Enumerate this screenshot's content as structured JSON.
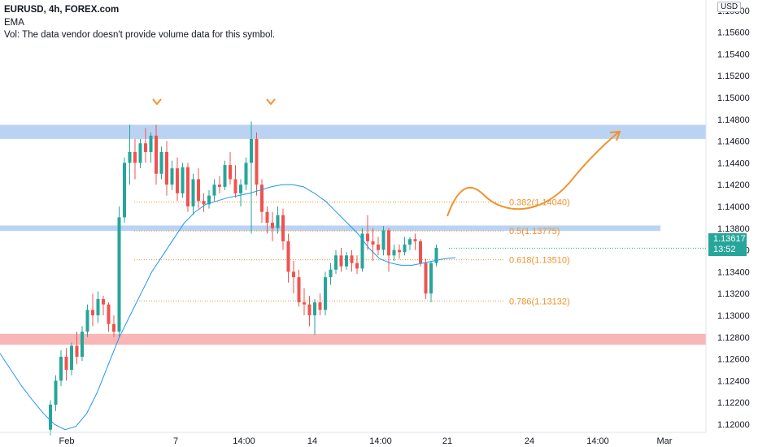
{
  "header": {
    "title": "EURUSD, 4h, FOREX.com",
    "indicator": "EMA",
    "volume_note": "Vol: The data vendor doesn't provide volume data for this symbol."
  },
  "price_scale": {
    "currency": "USD",
    "current_price": "1.13617",
    "countdown": "13:52",
    "current_price_color": "#26a69a"
  },
  "colors": {
    "up": "#26a69a",
    "down": "#ef5350",
    "ema": "#2196f3",
    "fib": "#f0932b",
    "resistance_zone": "#bbd3f3",
    "support_zone": "#f9b6b6",
    "arrow": "#f0932b"
  },
  "chart_data": {
    "type": "candlestick",
    "title": "EURUSD, 4h, FOREX.com",
    "ylim": [
      1.1185,
      1.1585
    ],
    "y_ticks": [
      "1.15800",
      "1.15600",
      "1.15400",
      "1.15200",
      "1.15000",
      "1.14800",
      "1.14600",
      "1.14400",
      "1.14200",
      "1.14000",
      "1.13800",
      "1.13600",
      "1.13400",
      "1.13200",
      "1.13000",
      "1.12800",
      "1.12600",
      "1.12400",
      "1.12200",
      "1.12000"
    ],
    "x_ticks": [
      "Feb",
      "7",
      "14:00",
      "14",
      "14:00",
      "21",
      "24",
      "14:00",
      "Mar"
    ],
    "series": [
      {
        "name": "EURUSD",
        "ohlc": [
          [
            1.1195,
            1.1222,
            1.119,
            1.1218
          ],
          [
            1.1218,
            1.1245,
            1.1212,
            1.124
          ],
          [
            1.124,
            1.1268,
            1.1235,
            1.1262
          ],
          [
            1.1262,
            1.127,
            1.124,
            1.125
          ],
          [
            1.125,
            1.1275,
            1.1245,
            1.1272
          ],
          [
            1.1272,
            1.1285,
            1.1255,
            1.1262
          ],
          [
            1.1262,
            1.129,
            1.1258,
            1.1285
          ],
          [
            1.1285,
            1.131,
            1.128,
            1.1305
          ],
          [
            1.1305,
            1.132,
            1.129,
            1.13
          ],
          [
            1.13,
            1.1322,
            1.1293,
            1.1315
          ],
          [
            1.1315,
            1.1318,
            1.13,
            1.131
          ],
          [
            1.131,
            1.1312,
            1.1285,
            1.1292
          ],
          [
            1.1292,
            1.13,
            1.128,
            1.1285
          ],
          [
            1.1285,
            1.14,
            1.128,
            1.139
          ],
          [
            1.139,
            1.1445,
            1.1385,
            1.144
          ],
          [
            1.144,
            1.1475,
            1.142,
            1.145
          ],
          [
            1.145,
            1.1462,
            1.1425,
            1.144
          ],
          [
            1.144,
            1.1462,
            1.1435,
            1.1458
          ],
          [
            1.1458,
            1.1472,
            1.144,
            1.145
          ],
          [
            1.145,
            1.1468,
            1.144,
            1.1465
          ],
          [
            1.1465,
            1.1475,
            1.142,
            1.143
          ],
          [
            1.143,
            1.1455,
            1.1425,
            1.145
          ],
          [
            1.145,
            1.146,
            1.141,
            1.142
          ],
          [
            1.142,
            1.1442,
            1.1415,
            1.1435
          ],
          [
            1.1435,
            1.1445,
            1.1405,
            1.1412
          ],
          [
            1.1412,
            1.144,
            1.1408,
            1.1436
          ],
          [
            1.1436,
            1.144,
            1.1395,
            1.14
          ],
          [
            1.14,
            1.143,
            1.1392,
            1.1425
          ],
          [
            1.1425,
            1.1435,
            1.1398,
            1.1405
          ],
          [
            1.1405,
            1.1412,
            1.1395,
            1.1402
          ],
          [
            1.1402,
            1.1415,
            1.1398,
            1.141
          ],
          [
            1.141,
            1.1425,
            1.1405,
            1.142
          ],
          [
            1.142,
            1.1428,
            1.1412,
            1.1418
          ],
          [
            1.1418,
            1.1442,
            1.1415,
            1.1438
          ],
          [
            1.1438,
            1.145,
            1.142,
            1.1425
          ],
          [
            1.1425,
            1.1438,
            1.1408,
            1.1412
          ],
          [
            1.1412,
            1.1425,
            1.14,
            1.142
          ],
          [
            1.142,
            1.1445,
            1.1415,
            1.144
          ],
          [
            1.144,
            1.1478,
            1.1375,
            1.1462
          ],
          [
            1.1462,
            1.1468,
            1.141,
            1.142
          ],
          [
            1.142,
            1.1425,
            1.1385,
            1.1395
          ],
          [
            1.1395,
            1.14,
            1.1375,
            1.1385
          ],
          [
            1.1385,
            1.1395,
            1.1368,
            1.138
          ],
          [
            1.138,
            1.14,
            1.1375,
            1.1392
          ],
          [
            1.1392,
            1.1398,
            1.136,
            1.1368
          ],
          [
            1.1368,
            1.1375,
            1.133,
            1.134
          ],
          [
            1.134,
            1.135,
            1.132,
            1.1335
          ],
          [
            1.1335,
            1.1342,
            1.1308,
            1.1312
          ],
          [
            1.1312,
            1.1325,
            1.13,
            1.131
          ],
          [
            1.131,
            1.1318,
            1.129,
            1.13
          ],
          [
            1.13,
            1.1315,
            1.1282,
            1.1312
          ],
          [
            1.1312,
            1.132,
            1.13,
            1.1305
          ],
          [
            1.1305,
            1.134,
            1.13,
            1.1335
          ],
          [
            1.1335,
            1.1348,
            1.1328,
            1.1342
          ],
          [
            1.1342,
            1.136,
            1.1338,
            1.1355
          ],
          [
            1.1355,
            1.1362,
            1.134,
            1.1345
          ],
          [
            1.1345,
            1.1358,
            1.1342,
            1.1355
          ],
          [
            1.1355,
            1.136,
            1.134,
            1.1348
          ],
          [
            1.1348,
            1.1355,
            1.1338,
            1.1343
          ],
          [
            1.1343,
            1.138,
            1.134,
            1.1375
          ],
          [
            1.1375,
            1.1392,
            1.136,
            1.1368
          ],
          [
            1.1368,
            1.138,
            1.135,
            1.1365
          ],
          [
            1.1365,
            1.1372,
            1.1355,
            1.136
          ],
          [
            1.136,
            1.1382,
            1.1355,
            1.1378
          ],
          [
            1.1378,
            1.138,
            1.134,
            1.1355
          ],
          [
            1.1355,
            1.1365,
            1.135,
            1.136
          ],
          [
            1.136,
            1.1365,
            1.1352,
            1.1358
          ],
          [
            1.1358,
            1.1372,
            1.1355,
            1.1365
          ],
          [
            1.1365,
            1.1372,
            1.136,
            1.137
          ],
          [
            1.137,
            1.1375,
            1.136,
            1.1368
          ],
          [
            1.1368,
            1.137,
            1.1345,
            1.1348
          ],
          [
            1.1348,
            1.1352,
            1.1315,
            1.132
          ],
          [
            1.132,
            1.135,
            1.1312,
            1.1348
          ],
          [
            1.1348,
            1.1365,
            1.1345,
            1.1362
          ]
        ]
      },
      {
        "name": "EMA",
        "values": [
          1.1265,
          1.125,
          1.1235,
          1.1222,
          1.121,
          1.12,
          1.1195,
          1.1198,
          1.121,
          1.123,
          1.1255,
          1.128,
          1.13,
          1.132,
          1.134,
          1.1355,
          1.137,
          1.1385,
          1.1395,
          1.1402,
          1.1405,
          1.1408,
          1.141,
          1.1412,
          1.1415,
          1.1418,
          1.142,
          1.142,
          1.1418,
          1.1412,
          1.1405,
          1.1395,
          1.1385,
          1.1375,
          1.1362,
          1.1352,
          1.1348,
          1.1346,
          1.1346,
          1.1348,
          1.135,
          1.1352,
          1.1353
        ]
      }
    ],
    "fib_levels": [
      {
        "label": "0.382(1.14040)",
        "value": 1.1404
      },
      {
        "label": "0.5(1.13775)",
        "value": 1.13775
      },
      {
        "label": "0.618(1.13510)",
        "value": 1.1351
      },
      {
        "label": "0.786(1.13132)",
        "value": 1.13132
      }
    ],
    "zones": [
      {
        "name": "resistance",
        "from": 1.1462,
        "to": 1.1475
      },
      {
        "name": "mid",
        "from": 1.13775,
        "to": 1.13825
      },
      {
        "name": "support",
        "from": 1.1273,
        "to": 1.1283
      }
    ]
  }
}
